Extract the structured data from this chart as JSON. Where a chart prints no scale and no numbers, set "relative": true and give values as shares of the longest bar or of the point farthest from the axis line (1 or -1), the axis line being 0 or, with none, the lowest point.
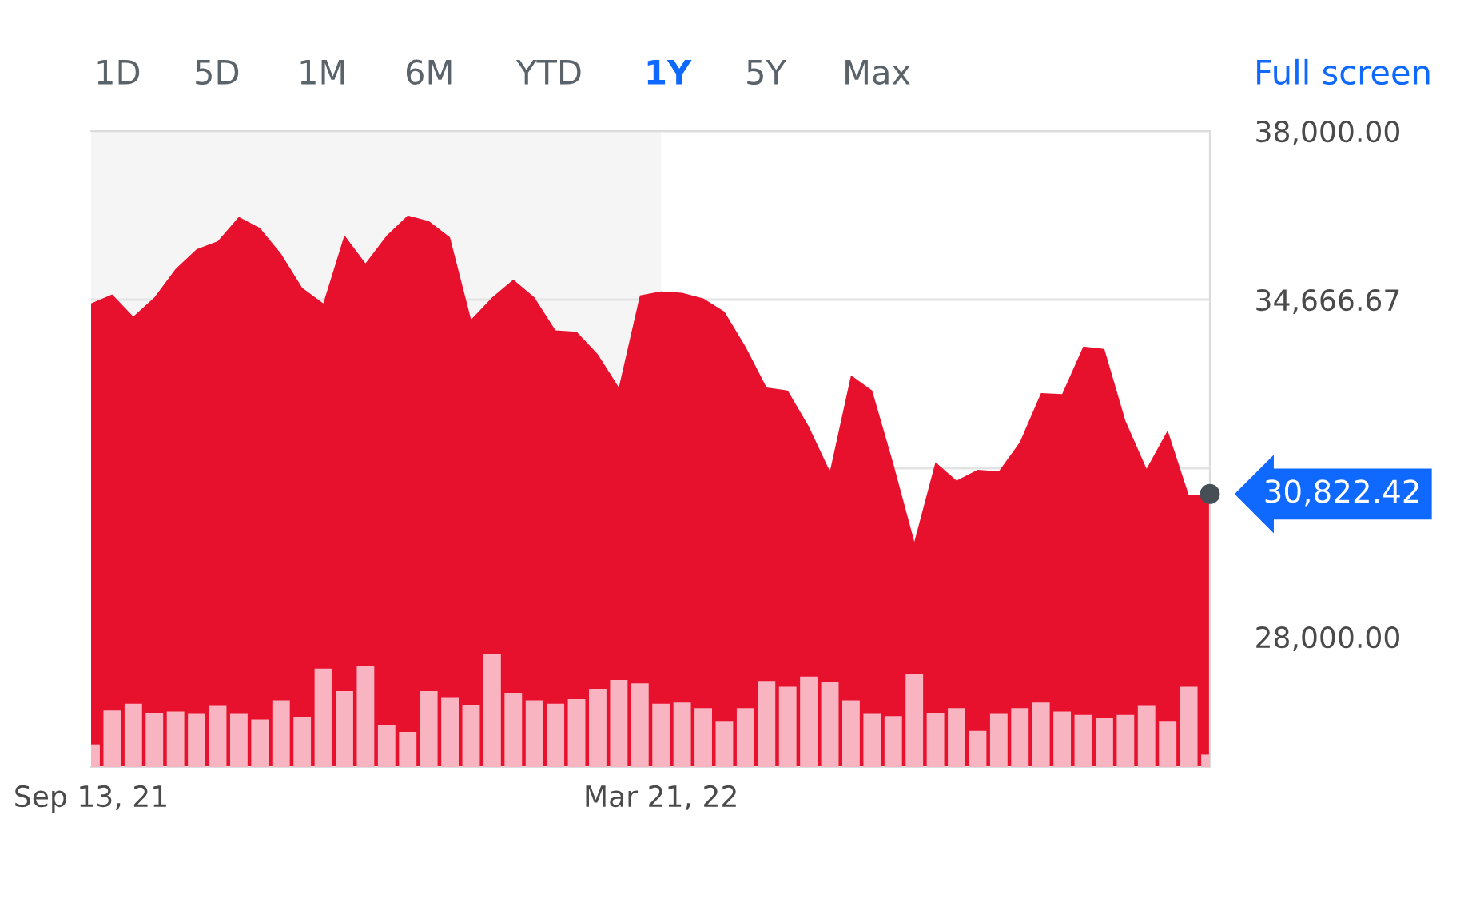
{
  "chart_data": [
    {
      "type": "area",
      "x": [
        "2021-09-13",
        "2021-09-20",
        "2021-09-27",
        "2021-10-04",
        "2021-10-11",
        "2021-10-18",
        "2021-10-25",
        "2021-11-01",
        "2021-11-08",
        "2021-11-15",
        "2021-11-22",
        "2021-11-29",
        "2021-12-06",
        "2021-12-13",
        "2021-12-20",
        "2021-12-27",
        "2022-01-03",
        "2022-01-10",
        "2022-01-17",
        "2022-01-24",
        "2022-01-31",
        "2022-02-07",
        "2022-02-14",
        "2022-02-21",
        "2022-02-28",
        "2022-03-07",
        "2022-03-14",
        "2022-03-21",
        "2022-03-28",
        "2022-04-04",
        "2022-04-11",
        "2022-04-18",
        "2022-04-25",
        "2022-05-02",
        "2022-05-09",
        "2022-05-16",
        "2022-05-23",
        "2022-05-30",
        "2022-06-06",
        "2022-06-13",
        "2022-06-20",
        "2022-06-27",
        "2022-07-04",
        "2022-07-11",
        "2022-07-18",
        "2022-07-25",
        "2022-08-01",
        "2022-08-08",
        "2022-08-15",
        "2022-08-22",
        "2022-08-29",
        "2022-09-05",
        "2022-09-12",
        "2022-09-19"
      ],
      "series": [
        {
          "color": "#e8112d",
          "values": [
            34590,
            34770,
            34330,
            34710,
            35270,
            35660,
            35820,
            36300,
            36080,
            35570,
            34900,
            34590,
            35940,
            35380,
            35930,
            36330,
            36220,
            35900,
            34270,
            34710,
            35060,
            34710,
            34060,
            34030,
            33590,
            32930,
            34750,
            34830,
            34800,
            34690,
            34430,
            33740,
            32930,
            32870,
            32160,
            31270,
            33170,
            32870,
            31430,
            29880,
            31450,
            31090,
            31300,
            31270,
            31850,
            32820,
            32800,
            33740,
            33690,
            32270,
            31320,
            32080,
            30800,
            30822.42
          ]
        }
      ],
      "xlim": [
        "2021-09-13",
        "2022-09-19"
      ],
      "xticks": [
        {
          "value": "2021-09-13",
          "label": "Sep 13, 21"
        },
        {
          "value": "2022-03-21",
          "label": "Mar 21, 22"
        }
      ],
      "ylim": [
        25425,
        38000
      ],
      "yticks": [
        {
          "value": 38000,
          "label": "38,000.00"
        },
        {
          "value": 34666.67,
          "label": "34,666.67"
        },
        {
          "value": 31333.33,
          "label": null
        },
        {
          "value": 28000,
          "label": "28,000.00"
        }
      ],
      "grid": "y",
      "bands": [
        {
          "axis": "x",
          "from": "2021-09-13",
          "to": "2022-03-21",
          "color": "#f5f5f5"
        }
      ],
      "annotations": [
        {
          "text": "30,822.42",
          "x": "2022-09-19",
          "y": 30822.42
        },
        "1D",
        "5D",
        "1M",
        "6M",
        "YTD",
        "1Y",
        "5Y",
        "Max",
        "Full screen"
      ]
    },
    {
      "type": "bar",
      "relative": true,
      "x": [
        "2021-09-13",
        "2021-09-20",
        "2021-09-27",
        "2021-10-04",
        "2021-10-11",
        "2021-10-18",
        "2021-10-25",
        "2021-11-01",
        "2021-11-08",
        "2021-11-15",
        "2021-11-22",
        "2021-11-29",
        "2021-12-06",
        "2021-12-13",
        "2021-12-20",
        "2021-12-27",
        "2022-01-03",
        "2022-01-10",
        "2022-01-17",
        "2022-01-24",
        "2022-01-31",
        "2022-02-07",
        "2022-02-14",
        "2022-02-21",
        "2022-02-28",
        "2022-03-07",
        "2022-03-14",
        "2022-03-21",
        "2022-03-28",
        "2022-04-04",
        "2022-04-11",
        "2022-04-18",
        "2022-04-25",
        "2022-05-02",
        "2022-05-09",
        "2022-05-16",
        "2022-05-23",
        "2022-05-30",
        "2022-06-06",
        "2022-06-13",
        "2022-06-20",
        "2022-06-27",
        "2022-07-04",
        "2022-07-11",
        "2022-07-18",
        "2022-07-25",
        "2022-08-01",
        "2022-08-08",
        "2022-08-15",
        "2022-08-22",
        "2022-08-29",
        "2022-09-05",
        "2022-09-12",
        "2022-09-19"
      ],
      "xlim": [
        "2021-09-13",
        "2022-09-19"
      ],
      "series": [
        {
          "color": "#f8b4c0",
          "values": [
            0.2,
            0.5,
            0.56,
            0.48,
            0.49,
            0.47,
            0.54,
            0.47,
            0.42,
            0.59,
            0.44,
            0.87,
            0.67,
            0.89,
            0.37,
            0.31,
            0.67,
            0.61,
            0.55,
            1,
            0.65,
            0.59,
            0.56,
            0.6,
            0.69,
            0.77,
            0.74,
            0.56,
            0.57,
            0.52,
            0.4,
            0.52,
            0.76,
            0.71,
            0.8,
            0.75,
            0.59,
            0.47,
            0.45,
            0.82,
            0.48,
            0.52,
            0.32,
            0.47,
            0.52,
            0.57,
            0.49,
            0.46,
            0.43,
            0.46,
            0.54,
            0.4,
            0.71,
            0.11
          ]
        }
      ]
    }
  ]
}
